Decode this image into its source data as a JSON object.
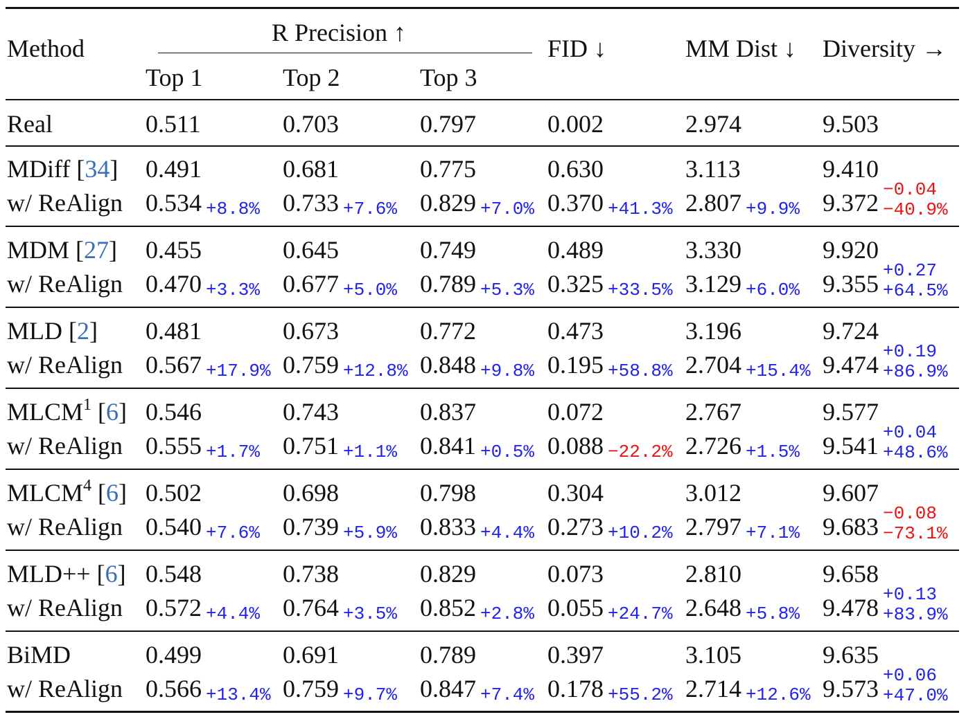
{
  "table": {
    "header": {
      "method": "Method",
      "r_precision": "R Precision ↑",
      "top1": "Top 1",
      "top2": "Top 2",
      "top3": "Top 3",
      "fid": "FID ↓",
      "mm_dist": "MM Dist ↓",
      "diversity": "Diversity →"
    },
    "real": {
      "label": "Real",
      "top1": "0.511",
      "top2": "0.703",
      "top3": "0.797",
      "fid": "0.002",
      "mm": "2.974",
      "div": "9.503"
    },
    "groups": [
      {
        "name": "MDiff",
        "sup": "",
        "ref": "34",
        "base": {
          "top1": "0.491",
          "top2": "0.681",
          "top3": "0.775",
          "fid": "0.630",
          "mm": "3.113",
          "div": "9.410"
        },
        "realign": {
          "label": "w/ ReAlign",
          "top1": "0.534",
          "top1_d": "+8.8%",
          "top2": "0.733",
          "top2_d": "+7.6%",
          "top3": "0.829",
          "top3_d": "+7.0%",
          "fid": "0.370",
          "fid_d": "+41.3%",
          "mm": "2.807",
          "mm_d": "+9.9%",
          "div": "9.372",
          "div_d1": "−0.04",
          "div_d2": "−40.9%",
          "fid_neg": false,
          "div_neg": true
        }
      },
      {
        "name": "MDM",
        "sup": "",
        "ref": "27",
        "base": {
          "top1": "0.455",
          "top2": "0.645",
          "top3": "0.749",
          "fid": "0.489",
          "mm": "3.330",
          "div": "9.920"
        },
        "realign": {
          "label": "w/ ReAlign",
          "top1": "0.470",
          "top1_d": "+3.3%",
          "top2": "0.677",
          "top2_d": "+5.0%",
          "top3": "0.789",
          "top3_d": "+5.3%",
          "fid": "0.325",
          "fid_d": "+33.5%",
          "mm": "3.129",
          "mm_d": "+6.0%",
          "div": "9.355",
          "div_d1": "+0.27",
          "div_d2": "+64.5%",
          "fid_neg": false,
          "div_neg": false
        }
      },
      {
        "name": "MLD",
        "sup": "",
        "ref": "2",
        "base": {
          "top1": "0.481",
          "top2": "0.673",
          "top3": "0.772",
          "fid": "0.473",
          "mm": "3.196",
          "div": "9.724"
        },
        "realign": {
          "label": "w/ ReAlign",
          "top1": "0.567",
          "top1_d": "+17.9%",
          "top2": "0.759",
          "top2_d": "+12.8%",
          "top3": "0.848",
          "top3_d": "+9.8%",
          "fid": "0.195",
          "fid_d": "+58.8%",
          "mm": "2.704",
          "mm_d": "+15.4%",
          "div": "9.474",
          "div_d1": "+0.19",
          "div_d2": "+86.9%",
          "fid_neg": false,
          "div_neg": false
        }
      },
      {
        "name": "MLCM",
        "sup": "1",
        "ref": "6",
        "base": {
          "top1": "0.546",
          "top2": "0.743",
          "top3": "0.837",
          "fid": "0.072",
          "mm": "2.767",
          "div": "9.577"
        },
        "realign": {
          "label": "w/ ReAlign",
          "top1": "0.555",
          "top1_d": "+1.7%",
          "top2": "0.751",
          "top2_d": "+1.1%",
          "top3": "0.841",
          "top3_d": "+0.5%",
          "fid": "0.088",
          "fid_d": "−22.2%",
          "mm": "2.726",
          "mm_d": "+1.5%",
          "div": "9.541",
          "div_d1": "+0.04",
          "div_d2": "+48.6%",
          "fid_neg": true,
          "div_neg": false
        }
      },
      {
        "name": "MLCM",
        "sup": "4",
        "ref": "6",
        "base": {
          "top1": "0.502",
          "top2": "0.698",
          "top3": "0.798",
          "fid": "0.304",
          "mm": "3.012",
          "div": "9.607"
        },
        "realign": {
          "label": "w/ ReAlign",
          "top1": "0.540",
          "top1_d": "+7.6%",
          "top2": "0.739",
          "top2_d": "+5.9%",
          "top3": "0.833",
          "top3_d": "+4.4%",
          "fid": "0.273",
          "fid_d": "+10.2%",
          "mm": "2.797",
          "mm_d": "+7.1%",
          "div": "9.683",
          "div_d1": "−0.08",
          "div_d2": "−73.1%",
          "fid_neg": false,
          "div_neg": true
        }
      },
      {
        "name": "MLD++",
        "sup": "",
        "ref": "6",
        "base": {
          "top1": "0.548",
          "top2": "0.738",
          "top3": "0.829",
          "fid": "0.073",
          "mm": "2.810",
          "div": "9.658"
        },
        "realign": {
          "label": "w/ ReAlign",
          "top1": "0.572",
          "top1_d": "+4.4%",
          "top2": "0.764",
          "top2_d": "+3.5%",
          "top3": "0.852",
          "top3_d": "+2.8%",
          "fid": "0.055",
          "fid_d": "+24.7%",
          "mm": "2.648",
          "mm_d": "+5.8%",
          "div": "9.478",
          "div_d1": "+0.13",
          "div_d2": "+83.9%",
          "fid_neg": false,
          "div_neg": false
        }
      },
      {
        "name": "BiMD",
        "sup": "",
        "ref": "",
        "base": {
          "top1": "0.499",
          "top2": "0.691",
          "top3": "0.789",
          "fid": "0.397",
          "mm": "3.105",
          "div": "9.635"
        },
        "realign": {
          "label": "w/ ReAlign",
          "top1": "0.566",
          "top1_d": "+13.4%",
          "top2": "0.759",
          "top2_d": "+9.7%",
          "top3": "0.847",
          "top3_d": "+7.4%",
          "fid": "0.178",
          "fid_d": "+55.2%",
          "mm": "2.714",
          "mm_d": "+12.6%",
          "div": "9.573",
          "div_d1": "+0.06",
          "div_d2": "+47.0%",
          "fid_neg": false,
          "div_neg": false
        }
      }
    ],
    "colors": {
      "positive": "#2222ee",
      "negative": "#ee1111",
      "ref": "#3a6fb5",
      "rule": "#111111"
    }
  }
}
